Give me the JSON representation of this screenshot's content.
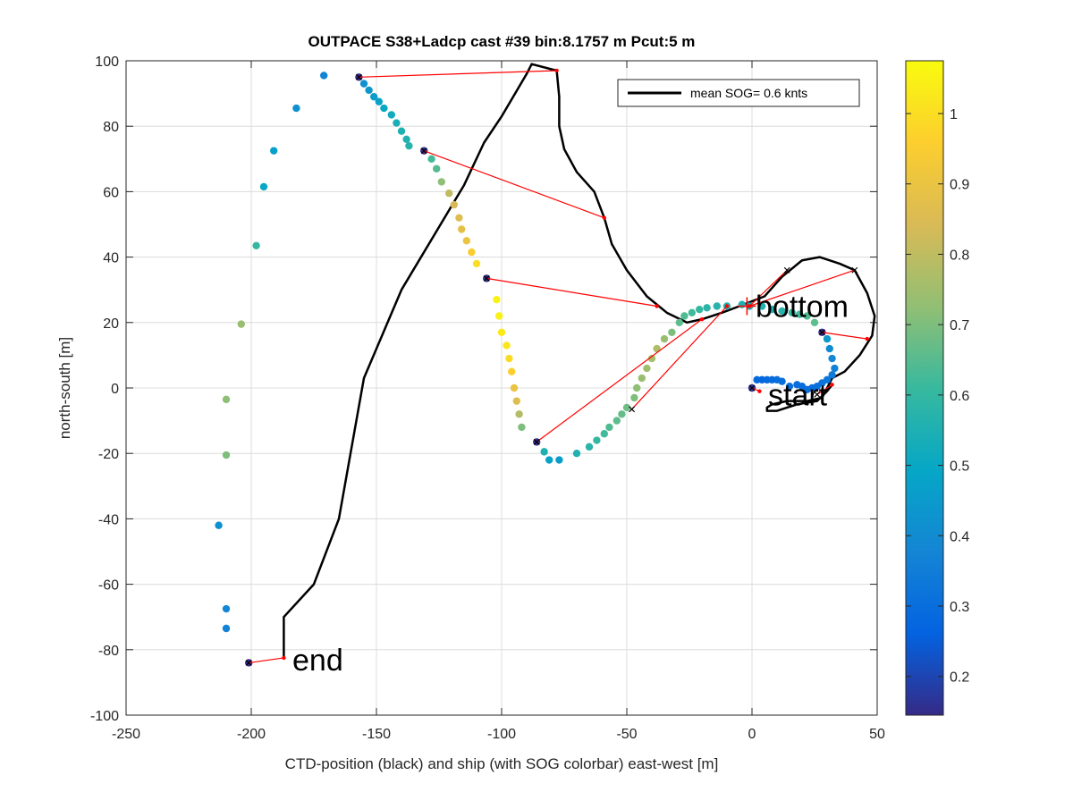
{
  "chart_data": {
    "type": "scatter",
    "title": "OUTPACE S38+Ladcp cast #39 bin:8.1757 m  Pcut:5 m",
    "xlabel": "CTD-position (black) and ship (with SOG colorbar) east-west [m]",
    "ylabel": "north-south [m]",
    "xlim": [
      -250,
      50
    ],
    "ylim": [
      -100,
      100
    ],
    "xticks": [
      -250,
      -200,
      -150,
      -100,
      -50,
      0,
      50
    ],
    "yticks": [
      -100,
      -80,
      -60,
      -40,
      -20,
      0,
      20,
      40,
      60,
      80,
      100
    ],
    "grid": true,
    "legend": {
      "position": "top-right",
      "entries": [
        "mean SOG=  0.6 knts"
      ]
    },
    "colorbar": {
      "range": [
        0.145,
        1.075
      ],
      "ticks": [
        0.2,
        0.3,
        0.4,
        0.5,
        0.6,
        0.7,
        0.8,
        0.9,
        1
      ],
      "tick_labels": [
        "0.2",
        "0.3",
        "0.4",
        "0.5",
        "0.6",
        "0.7",
        "0.8",
        "0.9",
        "1"
      ],
      "colormap": [
        "#352a87",
        "#0363e1",
        "#1485d4",
        "#06a7c6",
        "#38b99e",
        "#92bf73",
        "#d9ba56",
        "#fcce2e",
        "#f9fb0e"
      ]
    },
    "annotations": [
      {
        "text": "bottom",
        "x": 0,
        "y": 25
      },
      {
        "text": "start",
        "x": 5,
        "y": -2
      },
      {
        "text": "end",
        "x": -185,
        "y": -83
      }
    ],
    "series": [
      {
        "name": "mean SOG=  0.6 knts",
        "kind": "ctd_track",
        "color": "#000000",
        "points": [
          [
            -187,
            -82.5
          ],
          [
            -187,
            -70
          ],
          [
            -175,
            -60
          ],
          [
            -165,
            -40
          ],
          [
            -155,
            3
          ],
          [
            -140,
            30
          ],
          [
            -115,
            62
          ],
          [
            -107,
            75
          ],
          [
            -100,
            83
          ],
          [
            -90,
            96
          ],
          [
            -88,
            99
          ],
          [
            -78,
            97
          ],
          [
            -77,
            89
          ],
          [
            -77,
            80
          ],
          [
            -75,
            73
          ],
          [
            -70,
            66
          ],
          [
            -63,
            60
          ],
          [
            -59,
            52
          ],
          [
            -56,
            44
          ],
          [
            -50,
            36
          ],
          [
            -42,
            28
          ],
          [
            -34,
            23
          ],
          [
            -26,
            20
          ],
          [
            -20,
            21
          ],
          [
            -12,
            23
          ],
          [
            -5,
            25
          ],
          [
            5,
            28
          ],
          [
            12,
            34
          ],
          [
            20,
            39
          ],
          [
            27,
            40
          ],
          [
            35,
            38
          ],
          [
            41,
            36
          ],
          [
            46,
            29
          ],
          [
            49,
            22
          ],
          [
            48,
            16
          ],
          [
            43,
            10
          ],
          [
            37,
            5
          ],
          [
            32,
            3
          ],
          [
            28,
            -3
          ],
          [
            22,
            -4
          ],
          [
            14,
            -4
          ],
          [
            8,
            -5
          ],
          [
            6,
            -6
          ],
          [
            6,
            -7
          ],
          [
            10,
            -7
          ],
          [
            18,
            -5
          ],
          [
            26,
            -4
          ],
          [
            30,
            -1
          ],
          [
            32,
            1
          ]
        ]
      },
      {
        "name": "",
        "kind": "ship_sog",
        "points": [
          [
            -201,
            -84,
            0.15
          ],
          [
            -210,
            -73.5,
            0.37
          ],
          [
            -210,
            -67.5,
            0.38
          ],
          [
            -213,
            -42,
            0.42
          ],
          [
            -210,
            -20.5,
            0.7
          ],
          [
            -210,
            -3.5,
            0.72
          ],
          [
            -204,
            19.5,
            0.74
          ],
          [
            -198,
            43.5,
            0.6
          ],
          [
            -195,
            61.5,
            0.5
          ],
          [
            -191,
            72.5,
            0.47
          ],
          [
            -182,
            85.5,
            0.42
          ],
          [
            -171,
            95.5,
            0.37
          ],
          [
            -157,
            95,
            0.15
          ],
          [
            -155,
            93,
            0.42
          ],
          [
            -153,
            91,
            0.44
          ],
          [
            -151,
            89,
            0.46
          ],
          [
            -149,
            87.5,
            0.48
          ],
          [
            -147,
            85.5,
            0.5
          ],
          [
            -144,
            83.5,
            0.52
          ],
          [
            -142,
            81,
            0.54
          ],
          [
            -140,
            78.5,
            0.55
          ],
          [
            -138,
            76,
            0.56
          ],
          [
            -137,
            74,
            0.57
          ],
          [
            -131,
            72.5,
            0.15
          ],
          [
            -128,
            70,
            0.62
          ],
          [
            -126,
            67,
            0.65
          ],
          [
            -124,
            63,
            0.72
          ],
          [
            -121,
            59.5,
            0.8
          ],
          [
            -119,
            56,
            0.84
          ],
          [
            -117,
            52,
            0.86
          ],
          [
            -116,
            48.5,
            0.88
          ],
          [
            -114,
            45,
            0.9
          ],
          [
            -112,
            41.5,
            0.95
          ],
          [
            -110,
            38,
            1.0
          ],
          [
            -106,
            33.5,
            0.15
          ],
          [
            -102,
            27,
            1.05
          ],
          [
            -101,
            22,
            1.05
          ],
          [
            -100,
            17,
            1.03
          ],
          [
            -98,
            13,
            1.02
          ],
          [
            -97,
            9,
            0.99
          ],
          [
            -96,
            5,
            0.96
          ],
          [
            -95,
            0,
            0.9
          ],
          [
            -94,
            -4,
            0.86
          ],
          [
            -93,
            -8,
            0.78
          ],
          [
            -92,
            -12,
            0.7
          ],
          [
            -86,
            -16.5,
            0.15
          ],
          [
            -83,
            -19.5,
            0.55
          ],
          [
            -81,
            -22,
            0.48
          ],
          [
            -77,
            -22,
            0.46
          ],
          [
            -70,
            -20,
            0.55
          ],
          [
            -65,
            -18,
            0.58
          ],
          [
            -62,
            -16,
            0.6
          ],
          [
            -59,
            -14,
            0.62
          ],
          [
            -57,
            -12,
            0.64
          ],
          [
            -54,
            -10,
            0.66
          ],
          [
            -52,
            -8,
            0.67
          ],
          [
            -50,
            -6,
            0.68
          ],
          [
            -47,
            -3,
            0.7
          ],
          [
            -46,
            0,
            0.72
          ],
          [
            -44,
            3,
            0.74
          ],
          [
            -42,
            6,
            0.75
          ],
          [
            -40,
            9,
            0.76
          ],
          [
            -38,
            12,
            0.77
          ],
          [
            -35,
            15,
            0.74
          ],
          [
            -32,
            17,
            0.7
          ],
          [
            -29,
            20,
            0.66
          ],
          [
            -27,
            22,
            0.64
          ],
          [
            -24,
            23,
            0.62
          ],
          [
            -21,
            24,
            0.6
          ],
          [
            -18,
            24.5,
            0.58
          ],
          [
            -14,
            25,
            0.57
          ],
          [
            -10,
            25,
            0.56
          ],
          [
            -4,
            25.5,
            0.55
          ],
          [
            -1,
            25,
            0.55
          ],
          [
            4,
            25,
            0.55
          ],
          [
            8,
            24,
            0.56
          ],
          [
            12,
            23.5,
            0.57
          ],
          [
            16,
            23,
            0.6
          ],
          [
            19,
            22.5,
            0.62
          ],
          [
            22,
            22,
            0.64
          ],
          [
            25,
            20,
            0.66
          ],
          [
            28,
            17,
            0.15
          ],
          [
            30,
            15,
            0.45
          ],
          [
            31,
            12,
            0.4
          ],
          [
            32,
            9,
            0.38
          ],
          [
            33,
            6,
            0.36
          ],
          [
            32,
            4,
            0.34
          ],
          [
            30,
            2.5,
            0.33
          ],
          [
            28,
            1.5,
            0.32
          ],
          [
            26,
            0.5,
            0.31
          ],
          [
            24,
            0,
            0.3
          ],
          [
            22,
            -0.5,
            0.3
          ],
          [
            20,
            0.5,
            0.3
          ],
          [
            18,
            1,
            0.3
          ],
          [
            15,
            0.5,
            0.3
          ],
          [
            12,
            2,
            0.3
          ],
          [
            10,
            2.5,
            0.3
          ],
          [
            8,
            2.5,
            0.29
          ],
          [
            6,
            2.5,
            0.29
          ],
          [
            4,
            2.5,
            0.28
          ],
          [
            2,
            2.5,
            0.28
          ],
          [
            0,
            0,
            0.16
          ]
        ]
      },
      {
        "name": "",
        "kind": "ship_ctd_connectors",
        "color": "#ff0000",
        "segments": [
          [
            [
              0,
              0
            ],
            [
              3,
              -1
            ]
          ],
          [
            [
              -201,
              -84
            ],
            [
              -187,
              -82.5
            ]
          ],
          [
            [
              -157,
              95
            ],
            [
              -78,
              97
            ]
          ],
          [
            [
              -131,
              72.5
            ],
            [
              -59,
              52
            ]
          ],
          [
            [
              -106,
              33.5
            ],
            [
              -38,
              25
            ]
          ],
          [
            [
              -86,
              -16.5
            ],
            [
              -20,
              21
            ]
          ],
          [
            [
              -48,
              -6.5
            ],
            [
              -10,
              25
            ]
          ],
          [
            [
              28,
              17
            ],
            [
              46,
              15
            ]
          ],
          [
            [
              14,
              36
            ],
            [
              -1,
              25
            ]
          ],
          [
            [
              41,
              36
            ],
            [
              -1,
              25
            ]
          ],
          [
            [
              26,
              -2
            ],
            [
              32,
              1
            ]
          ]
        ]
      }
    ]
  }
}
